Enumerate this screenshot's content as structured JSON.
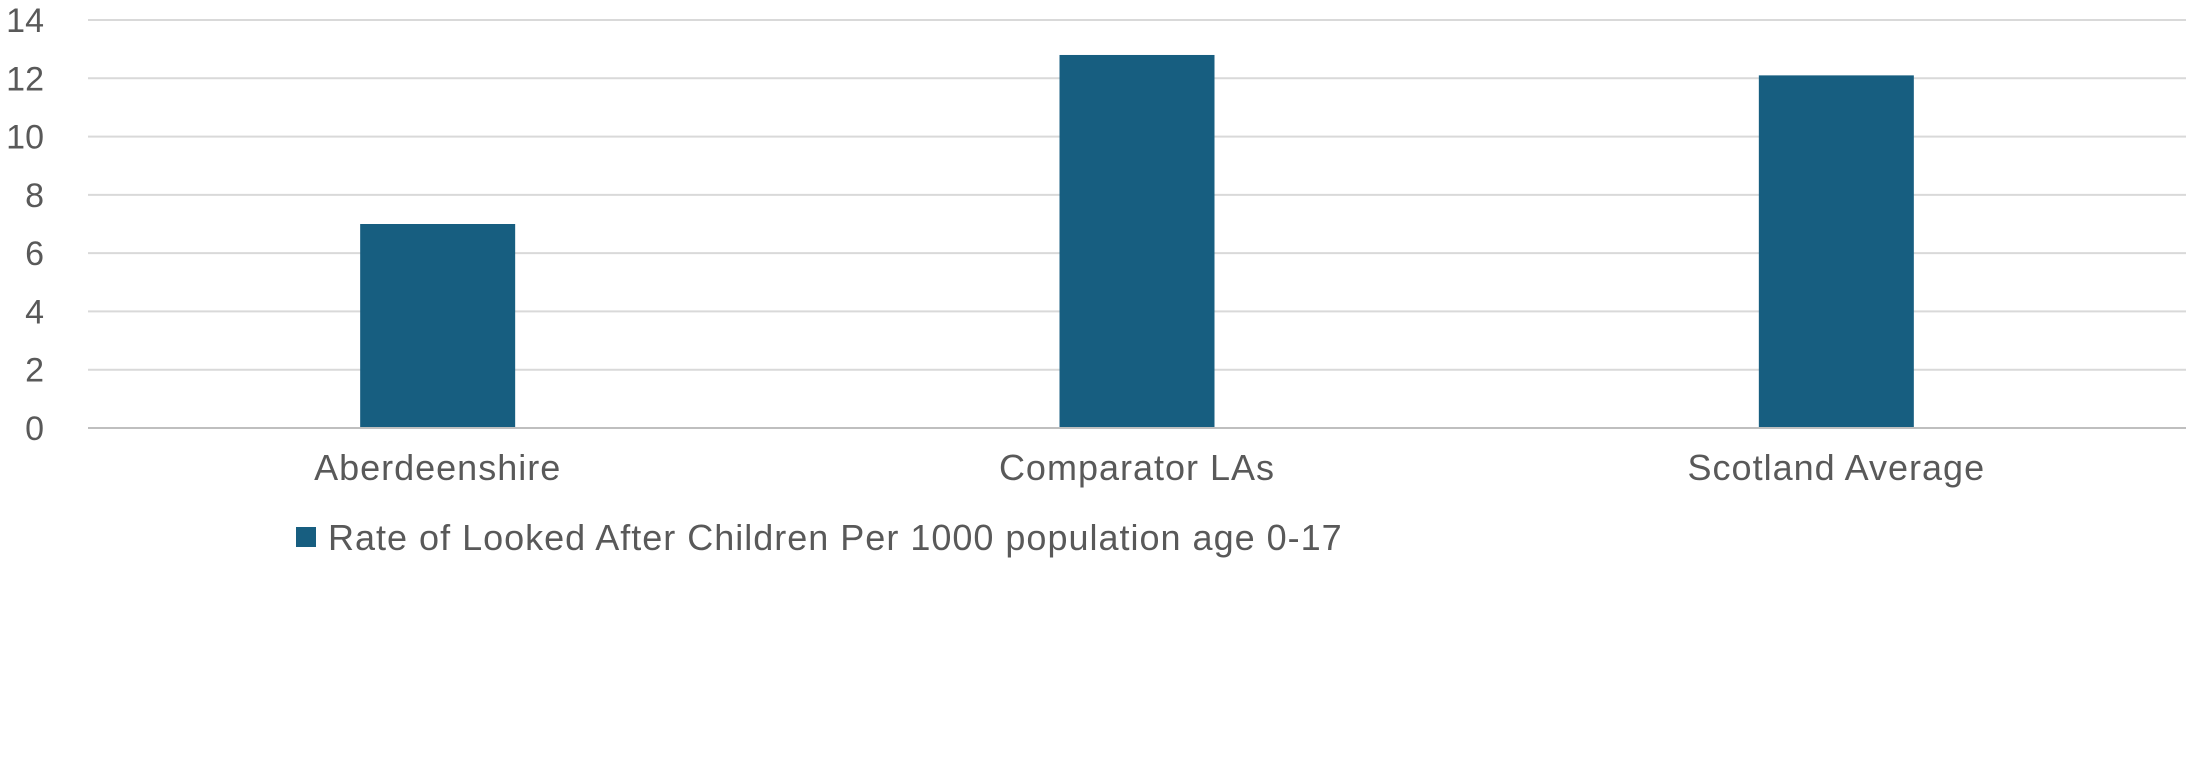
{
  "chart_data": {
    "type": "bar",
    "categories": [
      "Aberdeenshire",
      "Comparator LAs",
      "Scotland Average"
    ],
    "series": [
      {
        "name": "Rate of Looked After Children Per 1000 population age 0-17",
        "values": [
          7.0,
          12.8,
          12.1
        ],
        "color": "#175E80"
      }
    ],
    "ylim": [
      0,
      14
    ],
    "yticks": [
      0,
      2,
      4,
      6,
      8,
      10,
      12,
      14
    ],
    "grid": true,
    "legend_position": "bottom",
    "gridline_color": "#D9D9D9",
    "axis_color": "#BFBFBF"
  }
}
